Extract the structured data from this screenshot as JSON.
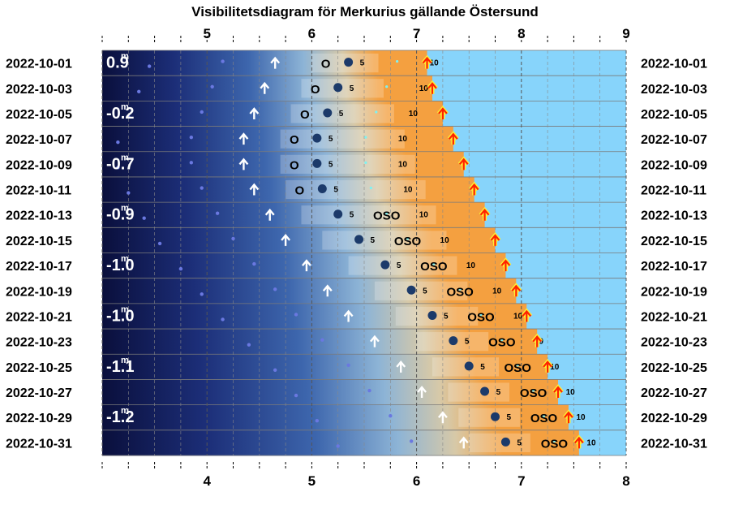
{
  "chart_data": {
    "type": "visibility-diagram",
    "title": "Visibilitetsdiagram för Merkurius gällande Östersund",
    "top_axis_hours": [
      "5",
      "6",
      "7",
      "8",
      "9"
    ],
    "bottom_axis_hours": [
      "4",
      "5",
      "6",
      "7",
      "8"
    ],
    "dates": [
      "2022-10-01",
      "2022-10-03",
      "2022-10-05",
      "2022-10-07",
      "2022-10-09",
      "2022-10-11",
      "2022-10-13",
      "2022-10-15",
      "2022-10-17",
      "2022-10-19",
      "2022-10-21",
      "2022-10-23",
      "2022-10-25",
      "2022-10-27",
      "2022-10-29",
      "2022-10-31"
    ],
    "magnitudes": [
      {
        "date": "2022-10-01",
        "text": "0.9"
      },
      {
        "date": "2022-10-05",
        "text": "-0.2"
      },
      {
        "date": "2022-10-09",
        "text": "-0.7"
      },
      {
        "date": "2022-10-13",
        "text": "-0.9"
      },
      {
        "date": "2022-10-17",
        "text": "-1.0"
      },
      {
        "date": "2022-10-21",
        "text": "-1.0"
      },
      {
        "date": "2022-10-25",
        "text": "-1.1"
      },
      {
        "date": "2022-10-29",
        "text": "-1.2"
      }
    ],
    "magnitude_unit": "m",
    "sunrise": [
      7.1,
      7.15,
      7.25,
      7.35,
      7.45,
      7.55,
      7.65,
      7.75,
      7.85,
      7.95,
      8.05,
      8.15,
      8.25,
      8.35,
      8.45,
      8.55
    ],
    "planet": [
      6.35,
      6.25,
      6.15,
      6.05,
      6.05,
      6.1,
      6.25,
      6.45,
      6.7,
      6.95,
      7.15,
      7.35,
      7.5,
      7.65,
      7.75,
      7.85
    ],
    "directions": [
      {
        "date": "2022-10-01",
        "text": "O"
      },
      {
        "date": "2022-10-03",
        "text": "O"
      },
      {
        "date": "2022-10-05",
        "text": "O"
      },
      {
        "date": "2022-10-07",
        "text": "O"
      },
      {
        "date": "2022-10-09",
        "text": "O"
      },
      {
        "date": "2022-10-11",
        "text": "O"
      },
      {
        "date": "2022-10-13",
        "text": "OSO"
      },
      {
        "date": "2022-10-15",
        "text": "OSO"
      },
      {
        "date": "2022-10-17",
        "text": "OSO"
      },
      {
        "date": "2022-10-19",
        "text": "OSO"
      },
      {
        "date": "2022-10-21",
        "text": "OSO"
      },
      {
        "date": "2022-10-23",
        "text": "OSO"
      },
      {
        "date": "2022-10-25",
        "text": "OSO"
      },
      {
        "date": "2022-10-27",
        "text": "OSO"
      },
      {
        "date": "2022-10-29",
        "text": "OSO"
      },
      {
        "date": "2022-10-31",
        "text": "OSO"
      }
    ],
    "altitude_labels": [
      "5",
      "10"
    ],
    "colors": {
      "night": "#0a0f3c",
      "dawn": "#f4a040",
      "day": "#87d4fb",
      "sunrise_arrow": "#ff2200",
      "planet": "#1c3a6a"
    }
  }
}
